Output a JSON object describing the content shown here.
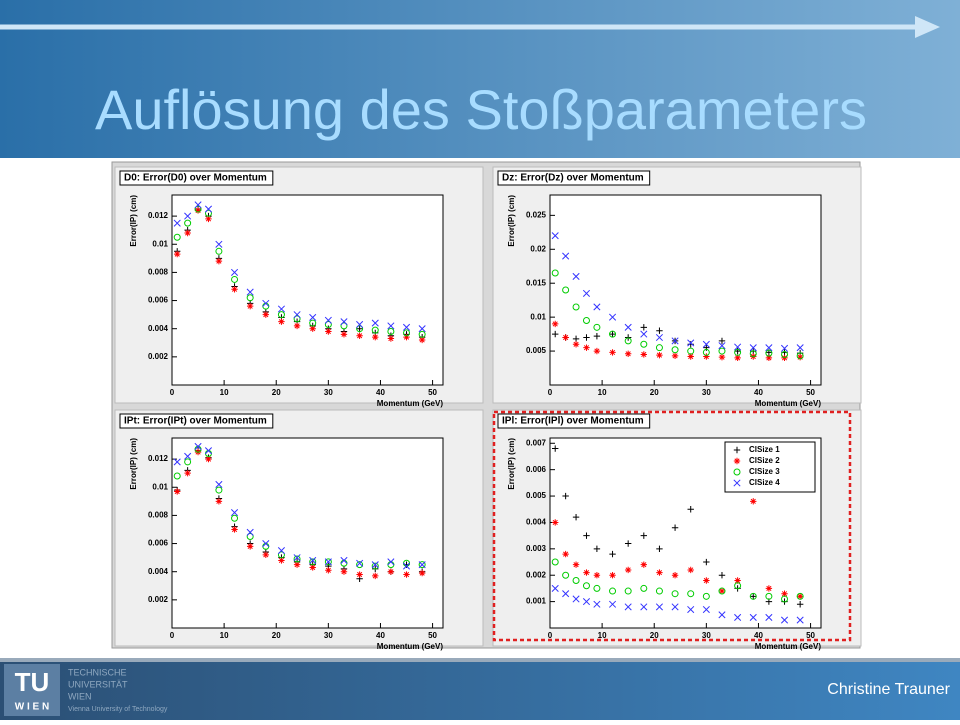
{
  "slide": {
    "title": "Auflösung des Stoßparameters",
    "author": "Christine Trauner",
    "logo_mark": "TU",
    "logo_city": "W I E N",
    "logo_lines": [
      "TECHNISCHE",
      "UNIVERSITÄT",
      "WIEN",
      "Vienna University of Technology"
    ]
  },
  "chart_data": [
    {
      "type": "scatter",
      "title": "D0: Error(D0) over Momentum",
      "x_label": "Momentum (GeV)",
      "y_label": "Error(IP) (cm)",
      "x": [
        1,
        3,
        5,
        7,
        9,
        12,
        15,
        18,
        21,
        24,
        27,
        30,
        33,
        36,
        39,
        42,
        45,
        48
      ],
      "xlim": [
        0,
        52
      ],
      "xticks": [
        0,
        10,
        20,
        30,
        40,
        50
      ],
      "ylim": [
        0,
        0.0135
      ],
      "yticks": [
        0.002,
        0.004,
        0.006,
        0.008,
        0.01,
        0.012
      ],
      "series": [
        {
          "color": "#000000",
          "marker": "plus",
          "values": [
            0.0095,
            0.011,
            0.0125,
            0.012,
            0.009,
            0.007,
            0.0058,
            0.0052,
            0.0048,
            0.0045,
            0.0042,
            0.004,
            0.0038,
            0.004,
            0.0037,
            0.0035,
            0.0036,
            0.0034
          ]
        },
        {
          "color": "#ff0000",
          "marker": "star",
          "values": [
            0.0093,
            0.0108,
            0.0124,
            0.0118,
            0.0088,
            0.0068,
            0.0056,
            0.005,
            0.0045,
            0.0042,
            0.004,
            0.0038,
            0.0036,
            0.0035,
            0.0034,
            0.0033,
            0.0034,
            0.0032
          ]
        },
        {
          "color": "#00cc00",
          "marker": "circle",
          "values": [
            0.0105,
            0.0115,
            0.0125,
            0.0122,
            0.0095,
            0.0075,
            0.0062,
            0.0056,
            0.005,
            0.0047,
            0.0044,
            0.0043,
            0.0042,
            0.004,
            0.0039,
            0.0038,
            0.0037,
            0.0036
          ]
        },
        {
          "color": "#3333ff",
          "marker": "cross",
          "values": [
            0.0115,
            0.012,
            0.0128,
            0.0125,
            0.01,
            0.008,
            0.0066,
            0.0058,
            0.0054,
            0.005,
            0.0048,
            0.0046,
            0.0045,
            0.0043,
            0.0044,
            0.0042,
            0.0041,
            0.004
          ]
        }
      ]
    },
    {
      "type": "scatter",
      "title": "Dz: Error(Dz) over Momentum",
      "x_label": "Momentum (GeV)",
      "y_label": "Error(IP) (cm)",
      "x": [
        1,
        3,
        5,
        7,
        9,
        12,
        15,
        18,
        21,
        24,
        27,
        30,
        33,
        36,
        39,
        42,
        45,
        48
      ],
      "xlim": [
        0,
        52
      ],
      "xticks": [
        0,
        10,
        20,
        30,
        40,
        50
      ],
      "ylim": [
        0,
        0.028
      ],
      "yticks": [
        0.005,
        0.01,
        0.015,
        0.02,
        0.025
      ],
      "series": [
        {
          "color": "#000000",
          "marker": "plus",
          "values": [
            0.0075,
            0.007,
            0.0068,
            0.007,
            0.0072,
            0.0075,
            0.007,
            0.0085,
            0.008,
            0.0065,
            0.006,
            0.0055,
            0.0065,
            0.005,
            0.005,
            0.0048,
            0.0048,
            0.0047
          ]
        },
        {
          "color": "#ff0000",
          "marker": "star",
          "values": [
            0.009,
            0.007,
            0.006,
            0.0055,
            0.005,
            0.0048,
            0.0046,
            0.0045,
            0.0044,
            0.0043,
            0.0042,
            0.0042,
            0.0041,
            0.004,
            0.0042,
            0.004,
            0.004,
            0.0041
          ]
        },
        {
          "color": "#00cc00",
          "marker": "circle",
          "values": [
            0.0165,
            0.014,
            0.0115,
            0.0095,
            0.0085,
            0.0075,
            0.0065,
            0.006,
            0.0055,
            0.0052,
            0.005,
            0.0048,
            0.005,
            0.0048,
            0.0046,
            0.0047,
            0.0045,
            0.0043
          ]
        },
        {
          "color": "#3333ff",
          "marker": "cross",
          "values": [
            0.022,
            0.019,
            0.016,
            0.0135,
            0.0115,
            0.01,
            0.0085,
            0.0075,
            0.007,
            0.0065,
            0.0062,
            0.006,
            0.0058,
            0.0056,
            0.0055,
            0.0055,
            0.0054,
            0.0055
          ]
        }
      ]
    },
    {
      "type": "scatter",
      "title": "IPt: Error(IPt) over Momentum",
      "x_label": "Momentum (GeV)",
      "y_label": "Error(IP) (cm)",
      "x": [
        1,
        3,
        5,
        7,
        9,
        12,
        15,
        18,
        21,
        24,
        27,
        30,
        33,
        36,
        39,
        42,
        45,
        48
      ],
      "xlim": [
        0,
        52
      ],
      "xticks": [
        0,
        10,
        20,
        30,
        40,
        50
      ],
      "ylim": [
        0,
        0.0135
      ],
      "yticks": [
        0.002,
        0.004,
        0.006,
        0.008,
        0.01,
        0.012
      ],
      "series": [
        {
          "color": "#000000",
          "marker": "plus",
          "values": [
            0.0098,
            0.0112,
            0.0126,
            0.0121,
            0.0092,
            0.0072,
            0.006,
            0.0054,
            0.005,
            0.0047,
            0.0045,
            0.0044,
            0.0042,
            0.0035,
            0.0042,
            0.004,
            0.0045,
            0.004
          ]
        },
        {
          "color": "#ff0000",
          "marker": "star",
          "values": [
            0.0097,
            0.011,
            0.0125,
            0.012,
            0.009,
            0.007,
            0.0058,
            0.0052,
            0.0048,
            0.0045,
            0.0043,
            0.0041,
            0.004,
            0.0038,
            0.0037,
            0.004,
            0.0038,
            0.0039
          ]
        },
        {
          "color": "#00cc00",
          "marker": "circle",
          "values": [
            0.0108,
            0.0118,
            0.0127,
            0.0124,
            0.0098,
            0.0078,
            0.0065,
            0.0058,
            0.0052,
            0.0049,
            0.0047,
            0.0047,
            0.0046,
            0.0045,
            0.0044,
            0.0045,
            0.0046,
            0.0045
          ]
        },
        {
          "color": "#3333ff",
          "marker": "cross",
          "values": [
            0.0118,
            0.0122,
            0.0129,
            0.0126,
            0.0102,
            0.0082,
            0.0068,
            0.006,
            0.0055,
            0.005,
            0.0048,
            0.0047,
            0.0048,
            0.0046,
            0.0045,
            0.0047,
            0.0044,
            0.0045
          ]
        }
      ]
    },
    {
      "type": "scatter",
      "title": "IPl: Error(IPl) over Momentum",
      "x_label": "Momentum (GeV)",
      "y_label": "Error(IP) (cm)",
      "legend": "top-right",
      "x": [
        1,
        3,
        5,
        7,
        9,
        12,
        15,
        18,
        21,
        24,
        27,
        30,
        33,
        36,
        39,
        42,
        45,
        48
      ],
      "xlim": [
        0,
        52
      ],
      "xticks": [
        0,
        10,
        20,
        30,
        40,
        50
      ],
      "ylim": [
        0,
        0.0072
      ],
      "yticks": [
        0.001,
        0.002,
        0.003,
        0.004,
        0.005,
        0.006,
        0.007
      ],
      "series": [
        {
          "name": "ClSize 1",
          "color": "#000000",
          "marker": "plus",
          "values": [
            0.0068,
            0.005,
            0.0042,
            0.0035,
            0.003,
            0.0028,
            0.0032,
            0.0035,
            0.003,
            0.0038,
            0.0045,
            0.0025,
            0.002,
            0.0015,
            0.0012,
            0.001,
            0.001,
            0.0009
          ]
        },
        {
          "name": "ClSize 2",
          "color": "#ff0000",
          "marker": "star",
          "values": [
            0.004,
            0.0028,
            0.0024,
            0.0021,
            0.002,
            0.002,
            0.0022,
            0.0024,
            0.0021,
            0.002,
            0.0022,
            0.0018,
            0.0014,
            0.0018,
            0.0048,
            0.0015,
            0.0013,
            0.0012
          ]
        },
        {
          "name": "ClSize 3",
          "color": "#00cc00",
          "marker": "circle",
          "values": [
            0.0025,
            0.002,
            0.0018,
            0.0016,
            0.0015,
            0.0014,
            0.0014,
            0.0015,
            0.0014,
            0.0013,
            0.0013,
            0.0012,
            0.0014,
            0.0016,
            0.0012,
            0.0012,
            0.0011,
            0.0012
          ]
        },
        {
          "name": "ClSize 4",
          "color": "#3333ff",
          "marker": "cross",
          "values": [
            0.0015,
            0.0013,
            0.0011,
            0.001,
            0.0009,
            0.0009,
            0.0008,
            0.0008,
            0.0008,
            0.0008,
            0.0007,
            0.0007,
            0.0005,
            0.0004,
            0.0004,
            0.0004,
            0.0003,
            0.0003
          ]
        }
      ]
    }
  ]
}
